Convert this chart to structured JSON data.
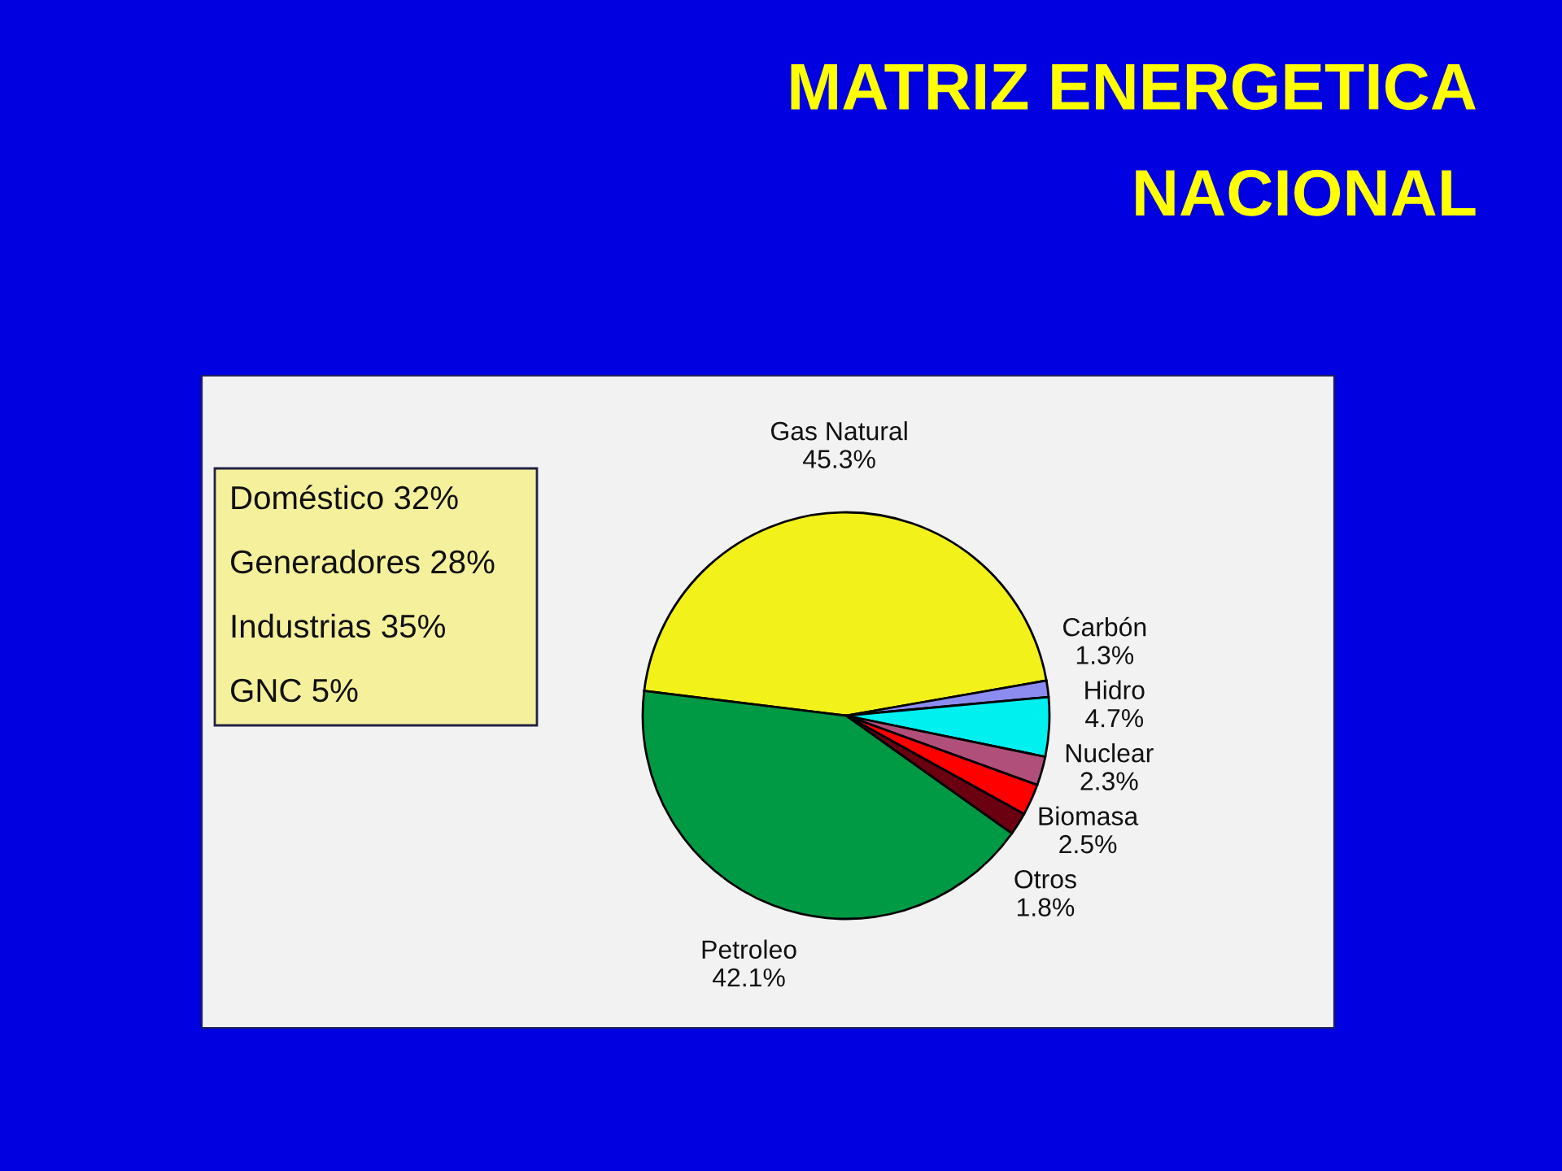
{
  "chart_data": {
    "type": "pie",
    "title": "MATRIZ ENERGETICA\nNACIONAL",
    "categories": [
      "Gas Natural",
      "Carbón",
      "Hidro",
      "Nuclear",
      "Biomasa",
      "Otros",
      "Petroleo"
    ],
    "values": [
      45.3,
      1.3,
      4.7,
      2.3,
      2.5,
      1.8,
      42.1
    ],
    "colors": [
      "#f2f21a",
      "#8c8cf0",
      "#00f0f0",
      "#b0507a",
      "#ff0000",
      "#6b0010",
      "#009a44"
    ],
    "value_labels": [
      "45.3%",
      "1.3%",
      "4.7%",
      "2.3%",
      "2.5%",
      "1.8%",
      "42.1%"
    ],
    "annotations": [
      "Doméstico 32%",
      "Generadores 28%",
      "Industrias 35%",
      "GNC 5%"
    ]
  }
}
